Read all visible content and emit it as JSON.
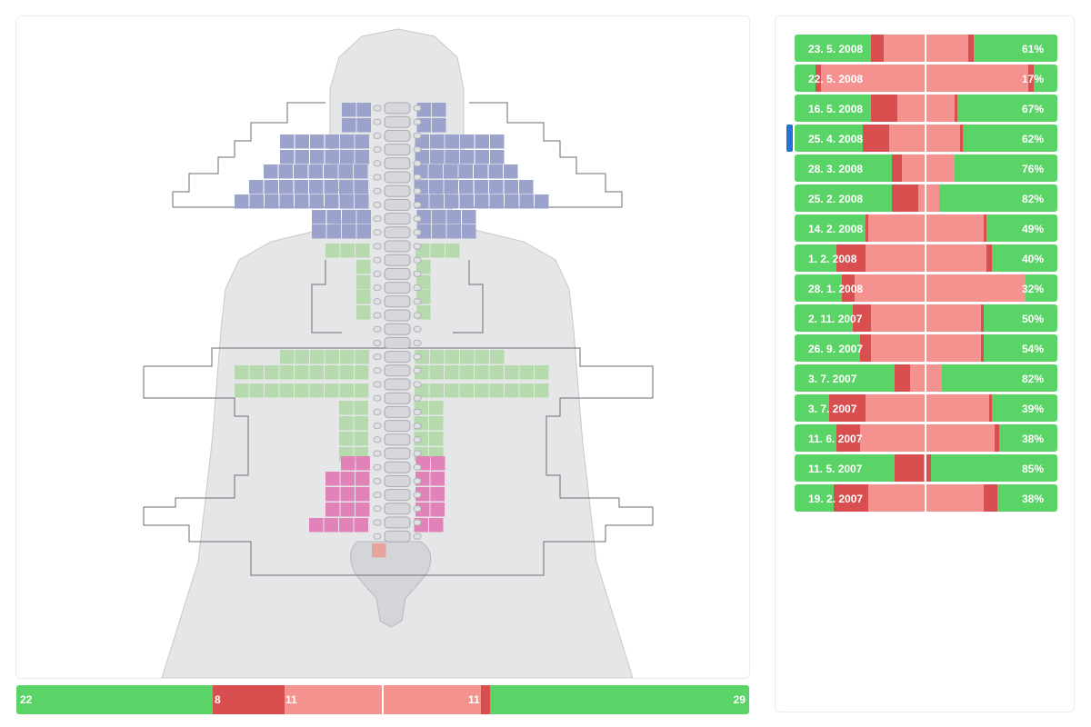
{
  "colors": {
    "green": "#5ad466",
    "dark_red": "#d94f4f",
    "light_red": "#f49290",
    "body_fill": "#e5e6e8",
    "spine_fill": "#d4d5d8",
    "region_blue": "#9ba3cd",
    "region_green": "#b6d9ad",
    "region_pink": "#e183b8",
    "selector": "#2b6fd9"
  },
  "summary": {
    "segments": [
      {
        "label": "22",
        "value": 22,
        "color": "green"
      },
      {
        "label": "8",
        "value": 8,
        "color": "dark_red"
      },
      {
        "label": "11",
        "value": 11,
        "color": "light_red"
      },
      {
        "label": "11",
        "value": 11,
        "color": "light_red"
      },
      {
        "label": "",
        "value": 1,
        "color": "dark_red"
      },
      {
        "label": "29",
        "value": 29,
        "color": "green"
      }
    ]
  },
  "selected_index": 3,
  "exams": [
    {
      "date": "23. 5. 2008",
      "percent": "61%",
      "segments": [
        29,
        5,
        32,
        2,
        32
      ]
    },
    {
      "date": "22. 5. 2008",
      "percent": "17%",
      "segments": [
        8,
        2,
        79,
        2,
        9
      ]
    },
    {
      "date": "16. 5. 2008",
      "percent": "67%",
      "segments": [
        29,
        10,
        22,
        1,
        38
      ]
    },
    {
      "date": "25. 4. 2008",
      "percent": "62%",
      "segments": [
        26,
        10,
        27,
        1,
        36
      ]
    },
    {
      "date": "28. 3. 2008",
      "percent": "76%",
      "segments": [
        37,
        4,
        20,
        0,
        39
      ]
    },
    {
      "date": "25. 2. 2008",
      "percent": "82%",
      "segments": [
        37,
        10,
        8,
        0,
        45
      ]
    },
    {
      "date": "14. 2. 2008",
      "percent": "49%",
      "segments": [
        27,
        1,
        44,
        1,
        27
      ]
    },
    {
      "date": "1. 2. 2008",
      "percent": "40%",
      "segments": [
        16,
        11,
        46,
        2,
        25
      ]
    },
    {
      "date": "28. 1. 2008",
      "percent": "32%",
      "segments": [
        18,
        5,
        65,
        0,
        12
      ]
    },
    {
      "date": "2. 11. 2007",
      "percent": "50%",
      "segments": [
        22,
        7,
        42,
        1,
        28
      ]
    },
    {
      "date": "26. 9. 2007",
      "percent": "54%",
      "segments": [
        25,
        4,
        42,
        1,
        28
      ]
    },
    {
      "date": "3. 7. 2007",
      "percent": "82%",
      "segments": [
        38,
        6,
        12,
        0,
        44
      ]
    },
    {
      "date": "3. 7. 2007",
      "percent": "39%",
      "segments": [
        13,
        14,
        47,
        1,
        25
      ]
    },
    {
      "date": "11. 6. 2007",
      "percent": "38%",
      "segments": [
        16,
        9,
        51,
        2,
        22
      ]
    },
    {
      "date": "11. 5. 2007",
      "percent": "85%",
      "segments": [
        38,
        11,
        1,
        2,
        48
      ]
    },
    {
      "date": "19. 2. 2007",
      "percent": "38%",
      "segments": [
        15,
        13,
        44,
        5,
        23
      ]
    }
  ]
}
